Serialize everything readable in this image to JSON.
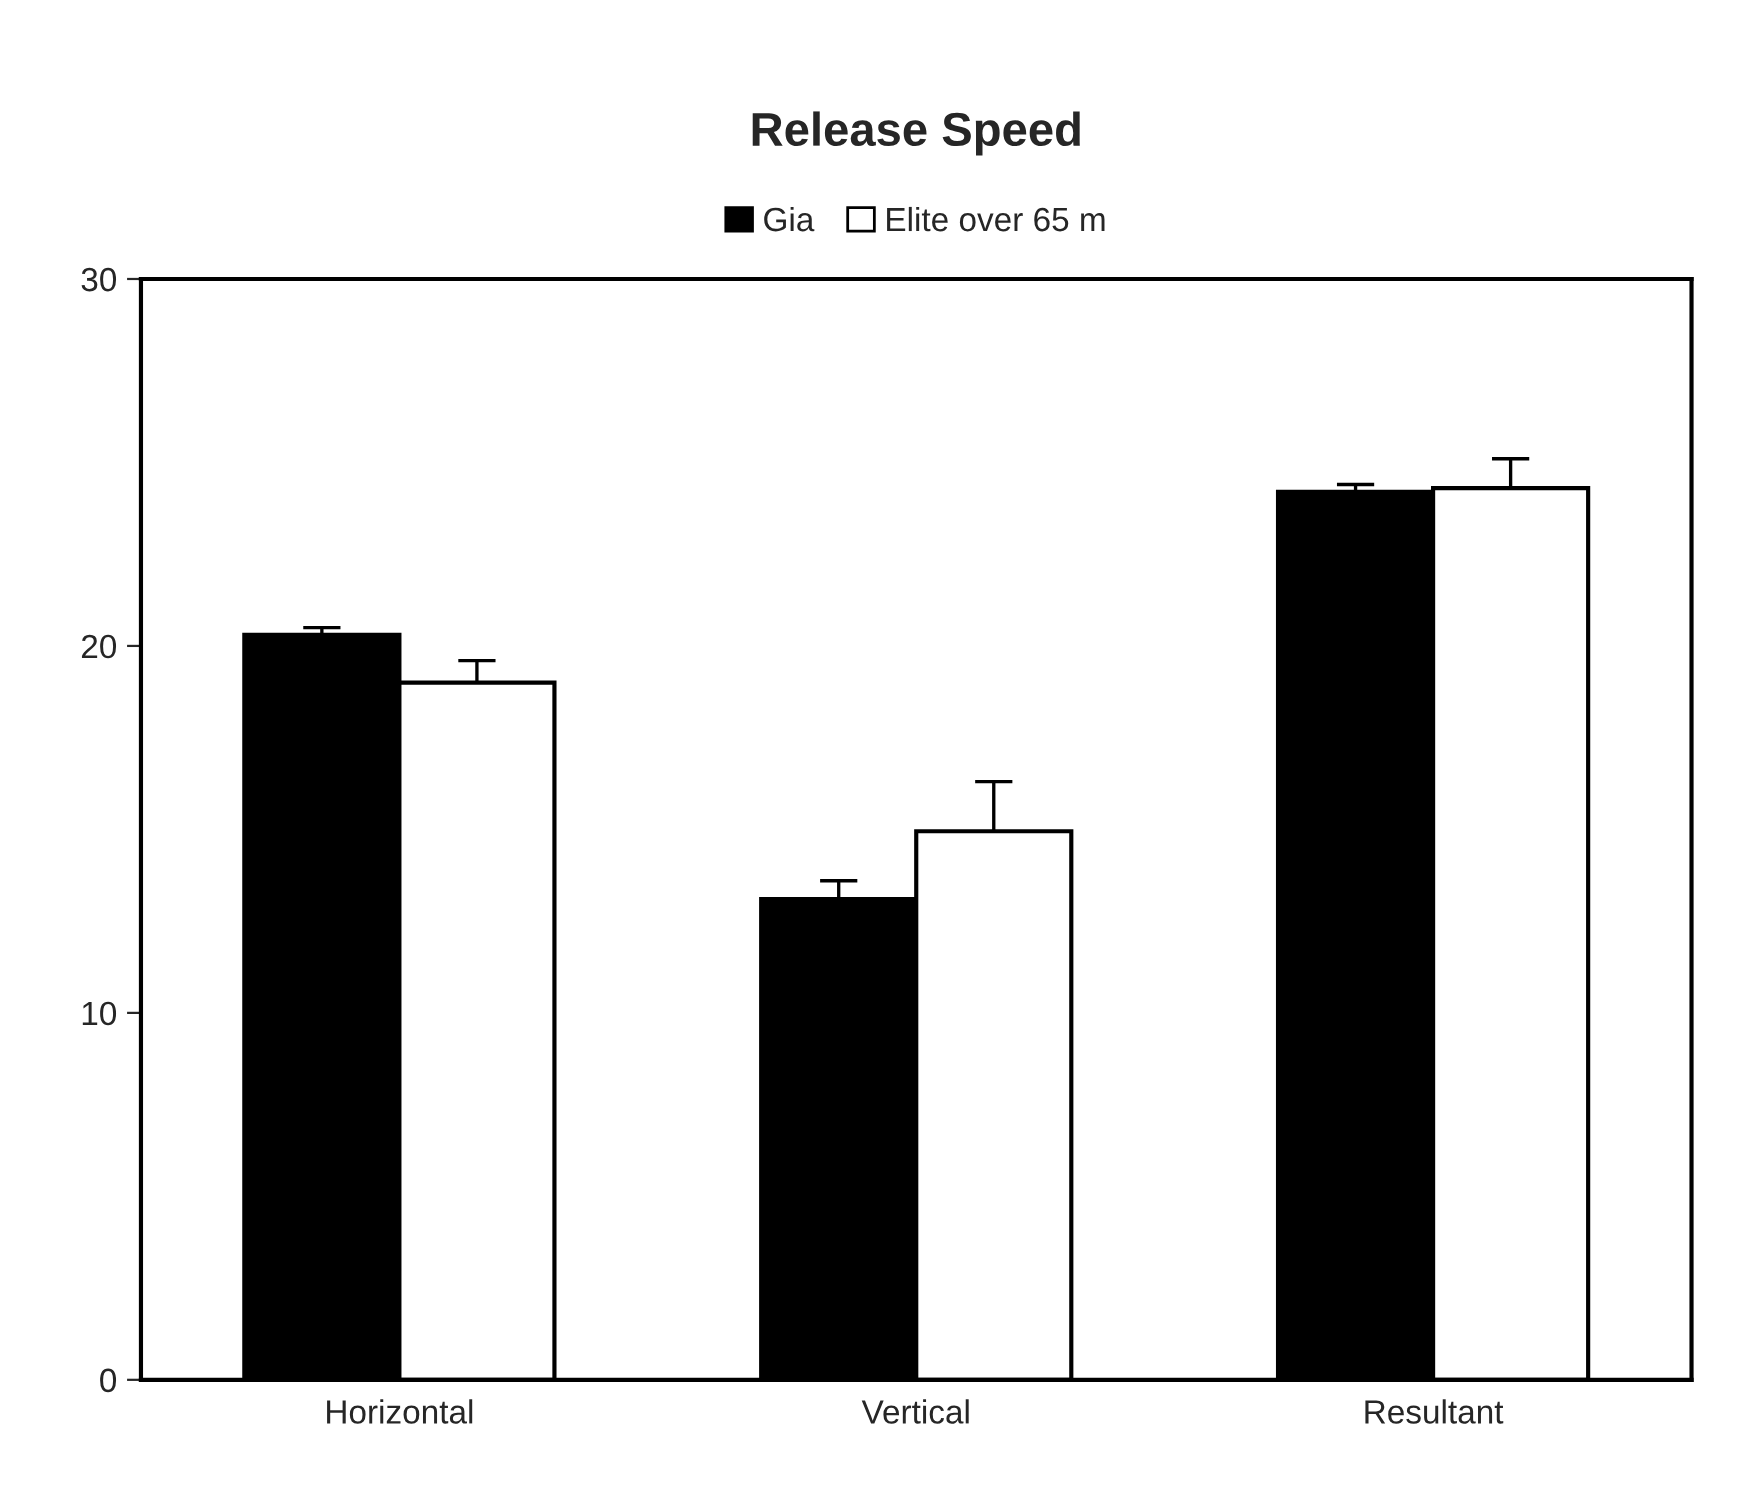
{
  "chart_data": {
    "type": "bar",
    "title": "Release Speed",
    "categories": [
      "Horizontal",
      "Vertical",
      "Resultant"
    ],
    "series": [
      {
        "name": "Gia",
        "color": "#000000",
        "values": [
          20.3,
          13.1,
          24.2
        ],
        "errors": [
          [
            20.3,
            20.5
          ],
          [
            13.1,
            13.6
          ],
          [
            24.2,
            24.4
          ]
        ]
      },
      {
        "name": "Elite over 65 m",
        "color": "#ffffff",
        "values": [
          19.0,
          14.95,
          24.3
        ],
        "errors": [
          [
            19.0,
            19.6
          ],
          [
            14.95,
            16.3
          ],
          [
            24.3,
            25.1
          ]
        ]
      }
    ],
    "ylim": [
      0,
      30
    ],
    "yticks": [
      0,
      10,
      20,
      30
    ],
    "grid": false,
    "legend": "top"
  }
}
